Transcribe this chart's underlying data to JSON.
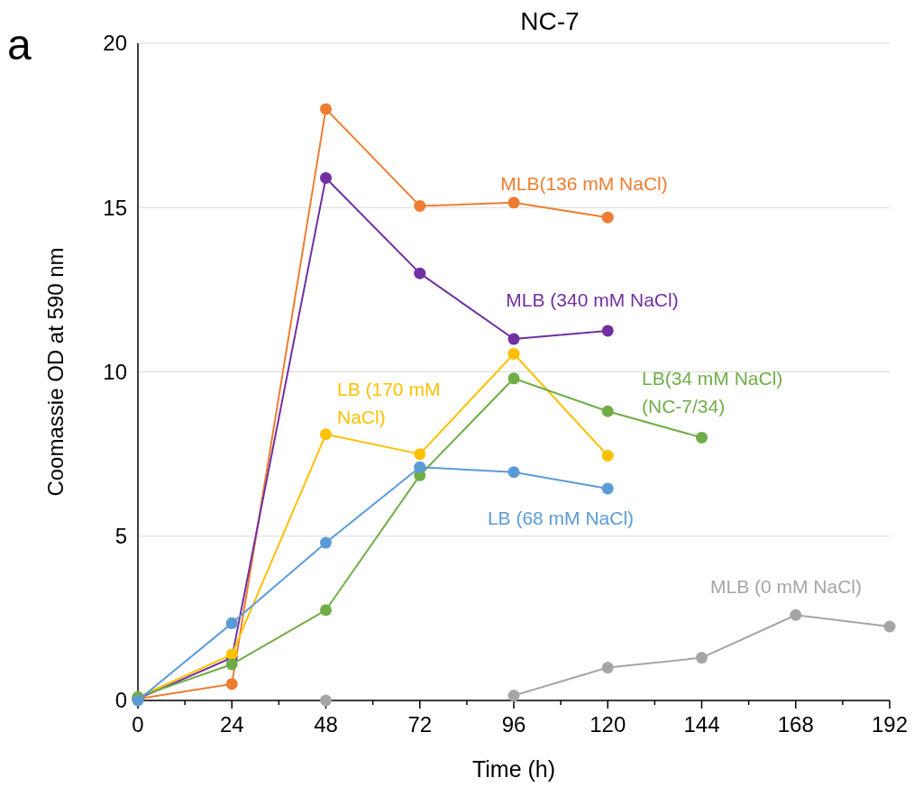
{
  "chart_data": {
    "type": "line",
    "title": "NC-7",
    "xlabel": "Time (h)",
    "ylabel": "Coomassie OD at 590 nm",
    "annotations": [
      "a"
    ],
    "x": [
      0,
      24,
      48,
      72,
      96,
      120,
      144,
      168,
      192
    ],
    "xlim": [
      0,
      192
    ],
    "xticks": [
      0,
      {
        "value": 12,
        "label": null
      },
      24,
      {
        "value": 36,
        "label": null
      },
      48,
      {
        "value": 60,
        "label": null
      },
      72,
      {
        "value": 84,
        "label": null
      },
      96,
      {
        "value": 108,
        "label": null
      },
      120,
      {
        "value": 132,
        "label": null
      },
      144,
      {
        "value": 156,
        "label": null
      },
      168,
      {
        "value": 180,
        "label": null
      },
      192
    ],
    "ylim": [
      0,
      20
    ],
    "yticks": [
      0,
      5,
      10,
      15,
      20
    ],
    "grid": "y",
    "marker": "circle",
    "line_style": "solid",
    "series": [
      {
        "name": "MLB(136 mM NaCl)",
        "color": "#ed7d31",
        "values": [
          0.05,
          0.5,
          18.0,
          15.05,
          15.15,
          14.7,
          null,
          null,
          null
        ]
      },
      {
        "name": "MLB (340 mM NaCl)",
        "color": "#7030a0",
        "values": [
          0.05,
          1.3,
          15.9,
          13.0,
          11.0,
          11.25,
          null,
          null,
          null
        ]
      },
      {
        "name": "LB (170 mM\nNaCl)",
        "color": "#ffc000",
        "values": [
          0.1,
          1.4,
          8.1,
          7.5,
          10.55,
          7.45,
          null,
          null,
          null
        ]
      },
      {
        "name": "LB(34 mM NaCl)\n(NC-7/34)",
        "color": "#70ad47",
        "values": [
          0.1,
          1.1,
          2.75,
          6.85,
          9.8,
          8.8,
          8.0,
          null,
          null
        ]
      },
      {
        "name": "LB (68 mM NaCl)",
        "color": "#5b9bd5",
        "values": [
          0,
          2.35,
          4.8,
          7.1,
          6.95,
          6.45,
          null,
          null,
          null
        ]
      },
      {
        "name": "MLB (0 mM NaCl)",
        "color": "#a5a5a5",
        "values": [
          null,
          null,
          0,
          null,
          0.15,
          1.0,
          1.3,
          2.6,
          2.25
        ]
      }
    ]
  }
}
